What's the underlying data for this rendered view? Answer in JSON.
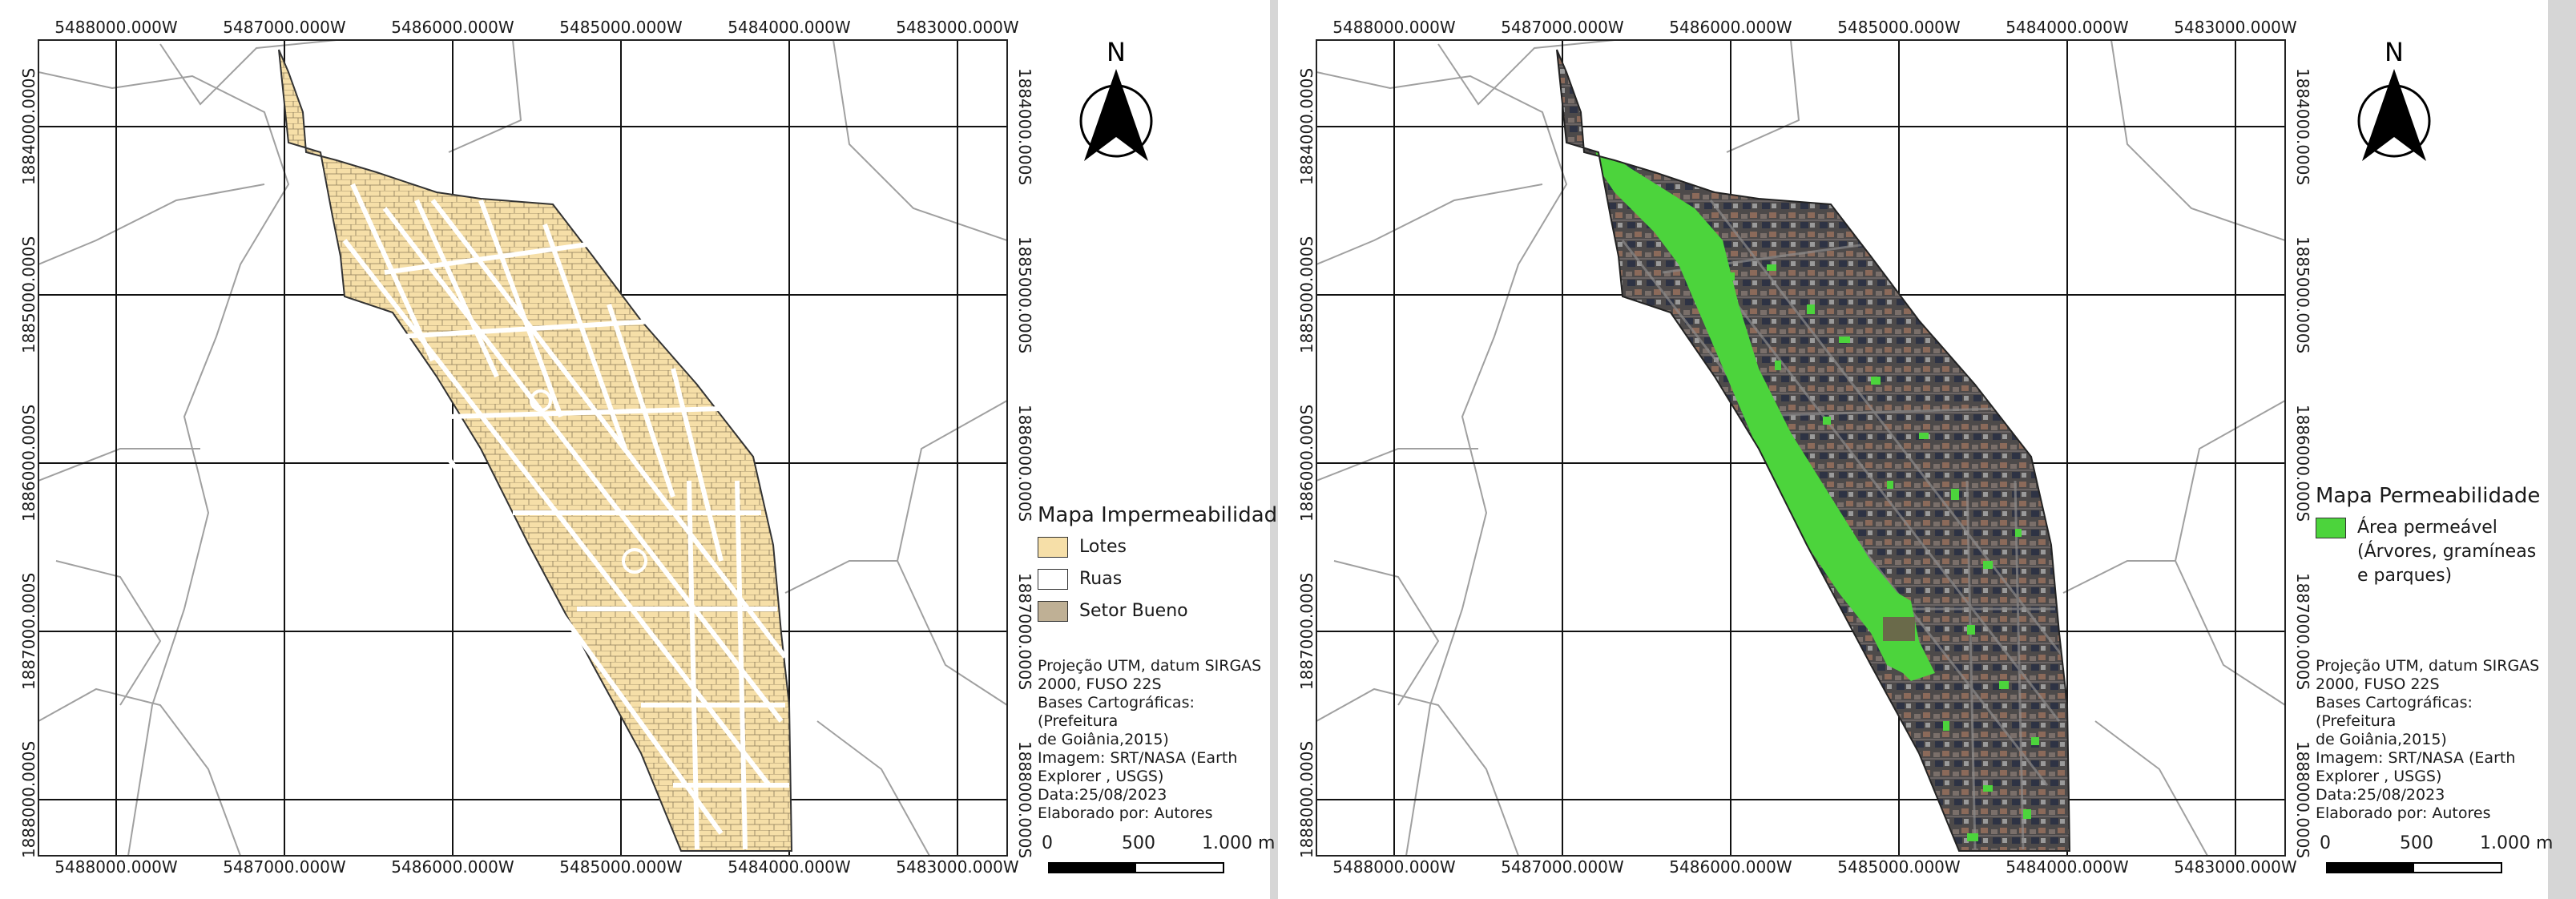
{
  "axis": {
    "x_ticks": [
      "5488000.000W",
      "5487000.000W",
      "5486000.000W",
      "5485000.000W",
      "5484000.000W",
      "5483000.000W"
    ],
    "y_ticks": [
      "1884000.000S",
      "1885000.000S",
      "1886000.000S",
      "1887000.000S",
      "1888000.000S"
    ]
  },
  "north_arrow": {
    "label": "N"
  },
  "maps": [
    {
      "legend_title": "Mapa Impermeabilidade",
      "legend_items": [
        {
          "label": "Lotes",
          "color": "#f6dfa8"
        },
        {
          "label": "Ruas",
          "color": "#ffffff"
        },
        {
          "label": "Setor Bueno",
          "color": "#bfb095"
        }
      ]
    },
    {
      "legend_title": "Mapa Permeabilidade",
      "legend_items": [
        {
          "label_lines": [
            "Área permeável",
            "(Árvores, gramíneas",
            "e parques)"
          ],
          "color": "#4cd43c"
        }
      ]
    }
  ],
  "notes": [
    "Projeção UTM, datum SIRGAS",
    "2000, FUSO 22S",
    "Bases Cartográficas: (Prefeitura",
    "de Goiânia,2015)",
    "Imagem: SRT/NASA (Earth",
    "Explorer , USGS)",
    "Data:25/08/2023",
    "Elaborado por: Autores"
  ],
  "scalebar": {
    "labels": [
      "0",
      "500",
      "1.000 m"
    ]
  },
  "colors": {
    "lotes": "#f6dfa8",
    "setor_outline": "#3a3a3a",
    "permeable": "#4cd43c",
    "imagery": "#4d4a4a",
    "background_lines": "#9a9a9a"
  }
}
